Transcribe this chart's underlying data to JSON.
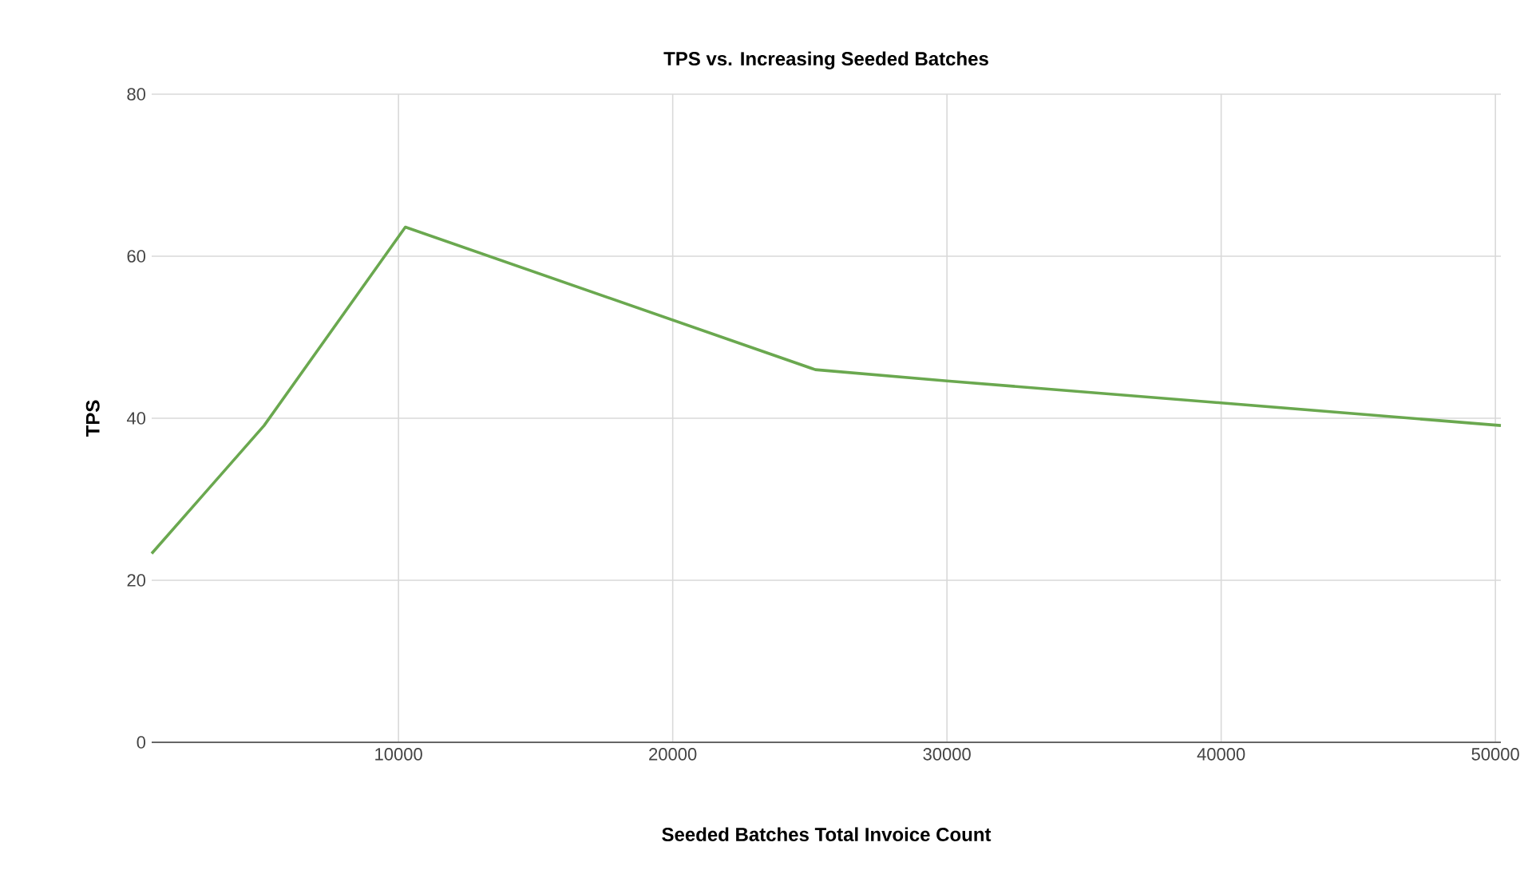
{
  "chart_data": {
    "type": "line",
    "title": "TPS vs. Increasing Seeded Batches",
    "xlabel": "Seeded Batches Total Invoice Count",
    "ylabel": "TPS",
    "x": [
      1000,
      5100,
      10250,
      25200,
      30000,
      40000,
      50200
    ],
    "series": [
      {
        "color": "#6aa84f",
        "values": [
          23.3,
          39.1,
          63.6,
          46.0,
          44.6,
          41.9,
          39.1
        ]
      }
    ],
    "xlim": [
      1000,
      50200
    ],
    "xticks": [
      10000,
      20000,
      30000,
      40000,
      50000
    ],
    "ylim": [
      0,
      80
    ],
    "yticks": [
      0,
      20,
      40,
      60,
      80
    ],
    "grid": true,
    "marker": "none",
    "line_style": "solid"
  }
}
